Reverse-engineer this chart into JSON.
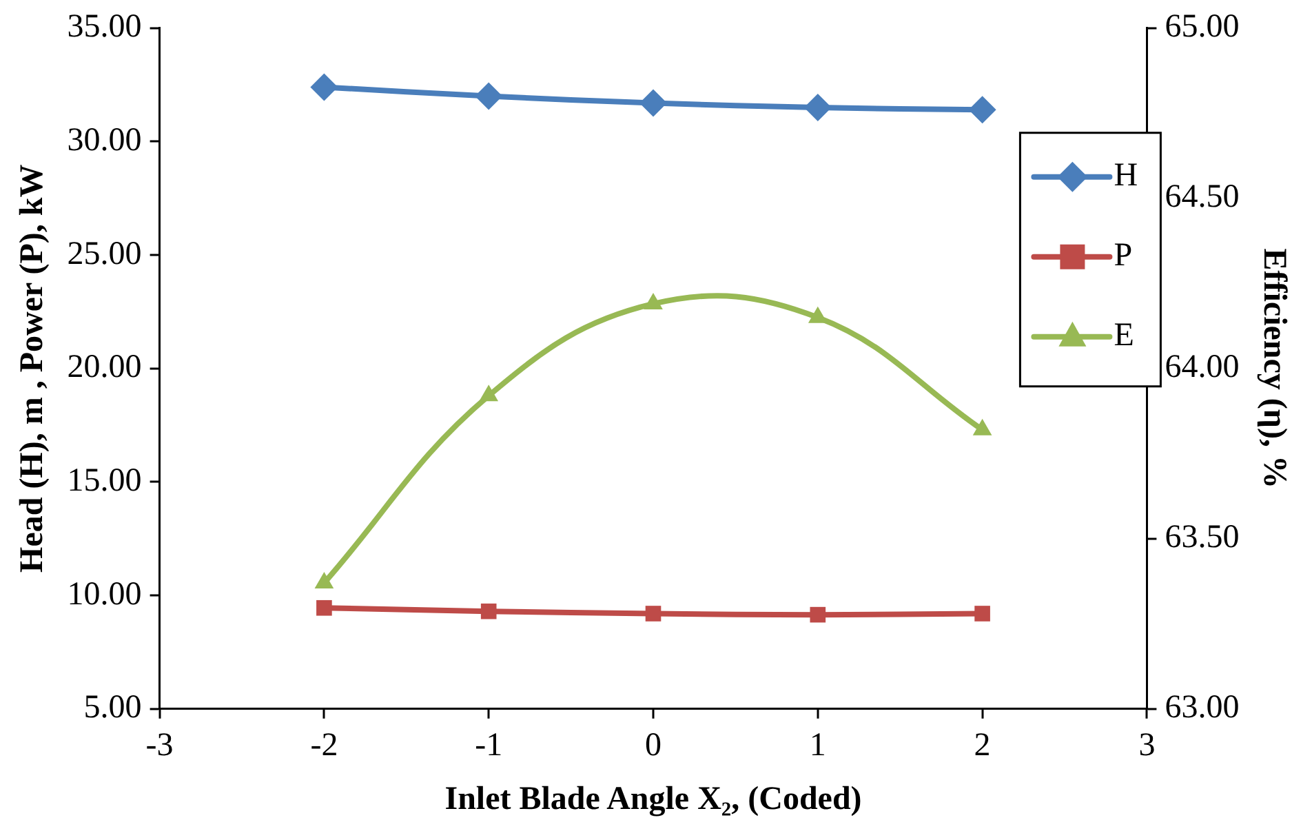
{
  "chart_data": {
    "type": "line",
    "xlabel": "Inlet Blade Angle X₂, (Coded)",
    "ylabel": "Head (H), m , Power (P), kW",
    "y2label": "Efficiency (η), %",
    "x": [
      -2,
      -1,
      0,
      1,
      2
    ],
    "xlim": [
      -3,
      3
    ],
    "xticks": [
      -3,
      -2,
      -1,
      0,
      1,
      2,
      3
    ],
    "ylim": [
      5,
      35
    ],
    "yticks": [
      {
        "value": 5,
        "label": "5.00"
      },
      {
        "value": 10,
        "label": "10.00"
      },
      {
        "value": 15,
        "label": "15.00"
      },
      {
        "value": 20,
        "label": "20.00"
      },
      {
        "value": 25,
        "label": "25.00"
      },
      {
        "value": 30,
        "label": "30.00"
      },
      {
        "value": 35,
        "label": "35.00"
      }
    ],
    "y2lim": [
      63,
      65
    ],
    "y2ticks": [
      {
        "value": 63,
        "label": "63.00"
      },
      {
        "value": 63.5,
        "label": "63.50"
      },
      {
        "value": 64,
        "label": "64.00"
      },
      {
        "value": 64.5,
        "label": "64.50"
      },
      {
        "value": 65,
        "label": "65.00"
      }
    ],
    "legend": "right",
    "series": [
      {
        "name": "H",
        "color": "#4a7ebb",
        "marker": "diamond",
        "values": [
          32.4,
          32.0,
          31.7,
          31.5,
          31.4
        ]
      },
      {
        "name": "P",
        "color": "#be4b48",
        "marker": "square",
        "values": [
          9.45,
          9.3,
          9.2,
          9.15,
          9.2
        ]
      },
      {
        "name": "E",
        "color": "#98b954",
        "marker": "triangle",
        "axis": "y2",
        "values": [
          63.37,
          63.92,
          64.19,
          64.15,
          63.82
        ]
      }
    ]
  }
}
